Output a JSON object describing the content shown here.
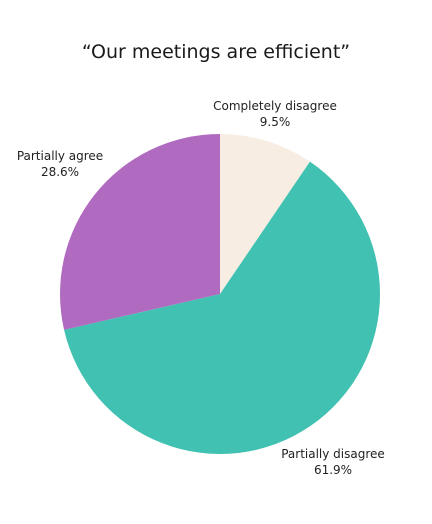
{
  "chart_data": {
    "type": "pie",
    "title": "“Our meetings are efficient”",
    "slices": [
      {
        "label": "Completely disagree",
        "value": 9.5,
        "value_label": "9.5%",
        "color": "#f7ede3"
      },
      {
        "label": "Partially disagree",
        "value": 61.9,
        "value_label": "61.9%",
        "color": "#41c1b1"
      },
      {
        "label": "Partially agree",
        "value": 28.6,
        "value_label": "28.6%",
        "color": "#b06bc0"
      }
    ],
    "start_angle": "12 o'clock",
    "direction": "clockwise"
  }
}
